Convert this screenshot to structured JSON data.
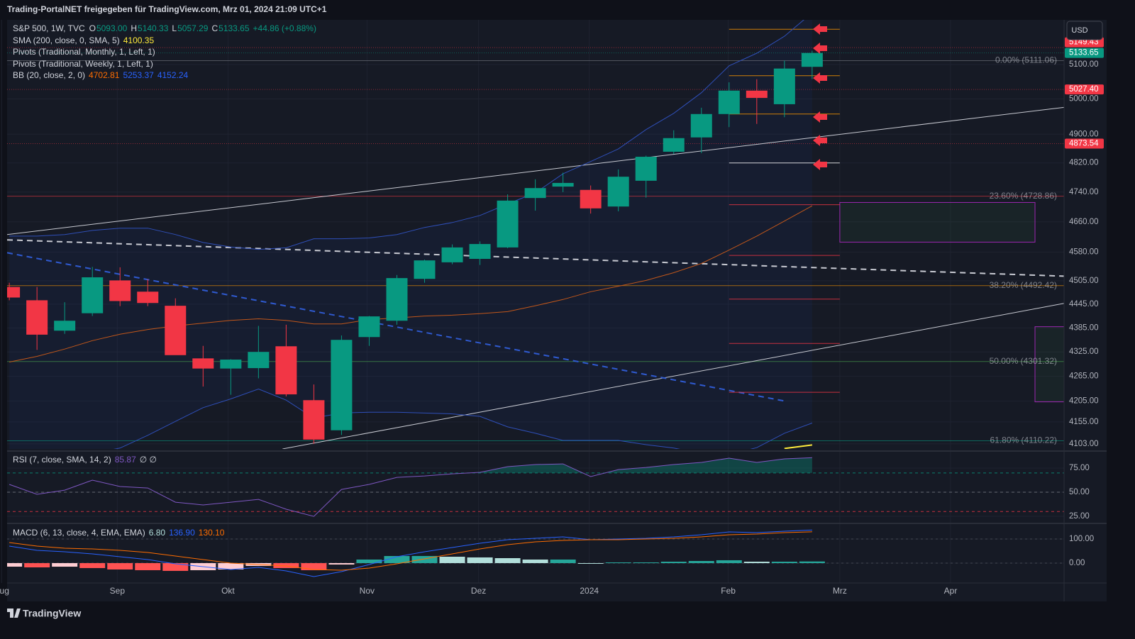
{
  "header": "Trading-PortalNET freigegeben für TradingView.com, Mrz 01, 2024 21:09 UTC+1",
  "currency_button": "USD",
  "footer_brand": "TradingView",
  "chart_data": {
    "type": "candlestick",
    "log_scale": true,
    "grid": true,
    "up_color": "#089981",
    "down_color": "#f23645",
    "legend": {
      "symbol": "S&P 500, 1W, TVC",
      "ohlc_keys": [
        "O",
        "H",
        "L",
        "C"
      ],
      "ohlc_labels": [
        "5093.00",
        "5140.33",
        "5057.29",
        "5133.65"
      ],
      "change": "+44.86 (+0.88%)",
      "sma": "SMA (200, close, 0, SMA, 5)",
      "pivots_monthly": "Pivots (Traditional, Monthly, 1, Left, 1)",
      "pivots_weekly": "Pivots (Traditional, Weekly, 1, Left, 1)",
      "bb": "BB (20, close, 2, 0)"
    },
    "xlim": [
      -0.08,
      38.1
    ],
    "xticks": [
      {
        "value": -0.28,
        "label": "Aug"
      },
      {
        "value": 3.9,
        "label": "Sep"
      },
      {
        "value": 7.9,
        "label": "Okt"
      },
      {
        "value": 12.92,
        "label": "Nov"
      },
      {
        "value": 16.95,
        "label": "Dez"
      },
      {
        "value": 20.95,
        "label": "2024"
      },
      {
        "value": 25.97,
        "label": "Feb"
      },
      {
        "value": 30,
        "label": "Mrz"
      },
      {
        "value": 34,
        "label": "Apr"
      }
    ],
    "ylim": [
      4091,
      5232
    ],
    "yticks": [
      {
        "value": 5100,
        "label": "5100.00"
      },
      {
        "value": 5000,
        "label": "5000.00"
      },
      {
        "value": 4900,
        "label": "4900.00"
      },
      {
        "value": 4820,
        "label": "4820.00"
      },
      {
        "value": 4740,
        "label": "4740.00"
      },
      {
        "value": 4660,
        "label": "4660.00"
      },
      {
        "value": 4580,
        "label": "4580.00"
      },
      {
        "value": 4505,
        "label": "4505.00"
      },
      {
        "value": 4445,
        "label": "4445.00"
      },
      {
        "value": 4385,
        "label": "4385.00"
      },
      {
        "value": 4325,
        "label": "4325.00"
      },
      {
        "value": 4265,
        "label": "4265.00"
      },
      {
        "value": 4205,
        "label": "4205.00"
      },
      {
        "value": 4155,
        "label": "4155.00"
      },
      {
        "value": 4103,
        "label": "4103.00"
      }
    ],
    "open": [
      4489,
      4455,
      4378,
      4422,
      4506,
      4477,
      4441,
      4309,
      4284,
      4285,
      4339,
      4207,
      4135,
      4362,
      4403,
      4510,
      4553,
      4562,
      4592,
      4724,
      4755,
      4746,
      4701,
      4771,
      4851,
      4891,
      4957,
      5024,
      4985,
      5093
    ],
    "high": [
      4500,
      4489,
      4450,
      4541,
      4540,
      4509,
      4460,
      4340,
      4307,
      4390,
      4393,
      4245,
      4366,
      4415,
      4520,
      4560,
      4600,
      4608,
      4734,
      4775,
      4793,
      4758,
      4802,
      4840,
      4911,
      4975,
      5048,
      5057,
      5111,
      5140.33
    ],
    "low": [
      4455,
      4330,
      4370,
      4415,
      4440,
      4440,
      4320,
      4240,
      4220,
      4260,
      4216,
      4103,
      4124,
      4340,
      4393,
      4500,
      4548,
      4546,
      4590,
      4690,
      4740,
      4682,
      4688,
      4725,
      4845,
      4847,
      4920,
      4929,
      4948,
      5057.29
    ],
    "close": [
      4462,
      4368,
      4403,
      4514,
      4453,
      4448,
      4317,
      4284,
      4306,
      4325,
      4221,
      4113,
      4355,
      4414,
      4512,
      4558,
      4592,
      4601,
      4717,
      4751,
      4765,
      4696,
      4782,
      4837,
      4889,
      4957,
      5024,
      5003,
      5088,
      5133.65
    ],
    "sma": {
      "color": "#ffeb3b",
      "values": [
        null,
        null,
        null,
        null,
        null,
        null,
        null,
        null,
        null,
        null,
        null,
        null,
        null,
        null,
        null,
        null,
        null,
        null,
        null,
        null,
        null,
        null,
        null,
        null,
        null,
        null,
        null,
        null,
        4092,
        4100.35
      ]
    },
    "bb": {
      "fill": "#2962ff",
      "basis": {
        "color": "#c2571a",
        "values": [
          4300,
          4314,
          4332,
          4353,
          4369,
          4381,
          4390,
          4397,
          4404,
          4408,
          4404,
          4395,
          4395,
          4406,
          4410,
          4415,
          4417,
          4421,
          4426,
          4441,
          4457,
          4477,
          4491,
          4506,
          4526,
          4550,
          4585,
          4622,
          4662,
          4702.81
        ]
      },
      "upper": {
        "color": "#2f4fb8",
        "values": [
          4622,
          4622,
          4626,
          4637,
          4643,
          4643,
          4626,
          4605,
          4593,
          4587,
          4591,
          4615,
          4615,
          4617,
          4626,
          4645,
          4658,
          4677,
          4708,
          4738,
          4790,
          4824,
          4859,
          4913,
          4959,
          5018,
          5096,
          5133,
          5183,
          5253.37
        ]
      },
      "lower": {
        "color": "#2f4fb8",
        "values": [
          4048,
          4056,
          4068,
          4081,
          4093,
          4123,
          4156,
          4189,
          4210,
          4234,
          4207,
          4164,
          4176,
          4178,
          4178,
          4176,
          4174,
          4168,
          4143,
          4128,
          4111,
          4111,
          4111,
          4101,
          4093,
          4081,
          4078,
          4094,
          4128,
          4152.24
        ]
      }
    },
    "trendlines": [
      {
        "x": [
          -0.08,
          38.1
        ],
        "y": [
          4626,
          4976
        ],
        "color": "#c8cad2",
        "dashed": false
      },
      {
        "x": [
          9.87,
          38.1
        ],
        "y": [
          4091,
          4447
        ],
        "color": "#c8cad2",
        "dashed": false
      },
      {
        "x": [
          -0.08,
          38.1
        ],
        "y": [
          4612,
          4517
        ],
        "color": "#c8cad2",
        "dashed": true
      },
      {
        "x": [
          -0.08,
          28
        ],
        "y": [
          4578,
          4205
        ],
        "color": "#2f5ad0",
        "dashed": true
      }
    ],
    "price_lines": [
      {
        "value": 5149.43,
        "label": "5149.43",
        "color": "#f23645"
      },
      {
        "value": 5133.65,
        "label": "5133.65",
        "color": "#089981"
      },
      {
        "value": 5027.4,
        "label": "5027.40",
        "color": "#f23645"
      },
      {
        "value": 4873.54,
        "label": "4873.54",
        "color": "#f23645"
      }
    ],
    "fib_levels": [
      {
        "value": 5111.06,
        "label": "0.00% (5111.06)",
        "color": "#787b86"
      },
      {
        "value": 4728.86,
        "label": "23.60% (4728.86)",
        "color": "#f23645"
      },
      {
        "value": 4492.42,
        "label": "38.20% (4492.42)",
        "color": "#ff9800"
      },
      {
        "value": 4301.32,
        "label": "50.00% (4301.32)",
        "color": "#4caf50"
      },
      {
        "value": 4110.22,
        "label": "61.80% (4110.22)",
        "color": "#089981"
      }
    ],
    "pivots": {
      "x": [
        26,
        30
      ],
      "levels": [
        {
          "value": 5204,
          "color": "#ff9800"
        },
        {
          "value": 5067,
          "color": "#ff9800"
        },
        {
          "value": 4957,
          "color": "#ff9800"
        },
        {
          "value": 4820,
          "color": "#ffffff"
        },
        {
          "value": 4706,
          "color": "#f23645"
        },
        {
          "value": 4571,
          "color": "#f23645"
        },
        {
          "value": 4458,
          "color": "#f23645"
        },
        {
          "value": 4346,
          "color": "#f23645"
        },
        {
          "value": 4226,
          "color": "#f23645"
        }
      ]
    },
    "zones": [
      {
        "x": [
          30,
          37.05
        ],
        "y": [
          4606,
          4712
        ]
      },
      {
        "x": [
          37.05,
          38.6
        ],
        "y": [
          4203,
          4388
        ]
      }
    ],
    "zone_color": "#9c27b0",
    "zone_fill": "#4caf50",
    "rsi": {
      "legend": "RSI (7, close, SMA, 14, 2)",
      "extra": "∅ ∅",
      "color": "#7e57c2",
      "values": [
        58.1,
        47.8,
        52.2,
        62.5,
        55.9,
        54.4,
        39.7,
        36.8,
        39.7,
        42.6,
        32.4,
        25,
        52.9,
        58.1,
        65.4,
        66.9,
        69.1,
        70.6,
        76.5,
        78.7,
        79.4,
        66.2,
        73.5,
        75.7,
        78.7,
        80.9,
        85.3,
        80.9,
        84.6,
        85.87
      ],
      "ylim": [
        19.9,
        91.2
      ],
      "yticks": [
        {
          "value": 75,
          "label": "75.00"
        },
        {
          "value": 50,
          "label": "50.00"
        },
        {
          "value": 25,
          "label": "25.00"
        }
      ],
      "bands": [
        {
          "value": 70,
          "color": "#089981"
        },
        {
          "value": 50,
          "color": "#787b86"
        },
        {
          "value": 30,
          "color": "#f23645"
        }
      ]
    },
    "macd": {
      "legend": "MACD (6, 13, close, 4, EMA, EMA)",
      "legend_values": [
        "6.80",
        "136.90",
        "130.10"
      ],
      "hist_colors": [
        "#26a69a",
        "#b2dfdb",
        "#ffcdd2",
        "#ff5252"
      ],
      "histogram": [
        -14.7,
        -17.7,
        -14.8,
        -20.6,
        -26.4,
        -29.4,
        -32.3,
        -29.4,
        -26.5,
        -11.7,
        -20.6,
        -29.4,
        -5.9,
        14.7,
        29.4,
        29.5,
        26.5,
        23.6,
        20.6,
        14.7,
        14.7,
        0,
        2.9,
        2.9,
        5.9,
        8.8,
        11.8,
        5.9,
        5.9,
        6.8
      ],
      "line": {
        "color": "#2962ff",
        "values": [
          70.6,
          52.9,
          47,
          38.2,
          26.5,
          14.7,
          -2.9,
          -14.7,
          -26.5,
          -17.6,
          -32.4,
          -55.9,
          -35.3,
          -5.9,
          26.5,
          47.1,
          64.7,
          82.4,
          97.1,
          102.9,
          108.8,
          97.1,
          100,
          102.9,
          108.8,
          117.6,
          129.4,
          126.5,
          132.4,
          136.9
        ]
      },
      "signal": {
        "color": "#ff6d00",
        "values": [
          85.3,
          70.6,
          61.8,
          58.8,
          52.9,
          44.1,
          29.4,
          14.7,
          0,
          -5.9,
          -11.8,
          -26.5,
          -29.4,
          -20.6,
          -2.9,
          17.6,
          38.2,
          58.8,
          76.5,
          88.2,
          94.1,
          97.1,
          97.1,
          100,
          102.9,
          108.8,
          117.6,
          120.6,
          126.5,
          130.1
        ]
      },
      "ylim": [
        -82.4,
        158.8
      ],
      "yticks": [
        {
          "value": 100,
          "label": "100.00"
        },
        {
          "value": 0,
          "label": "0.00"
        }
      ]
    }
  }
}
